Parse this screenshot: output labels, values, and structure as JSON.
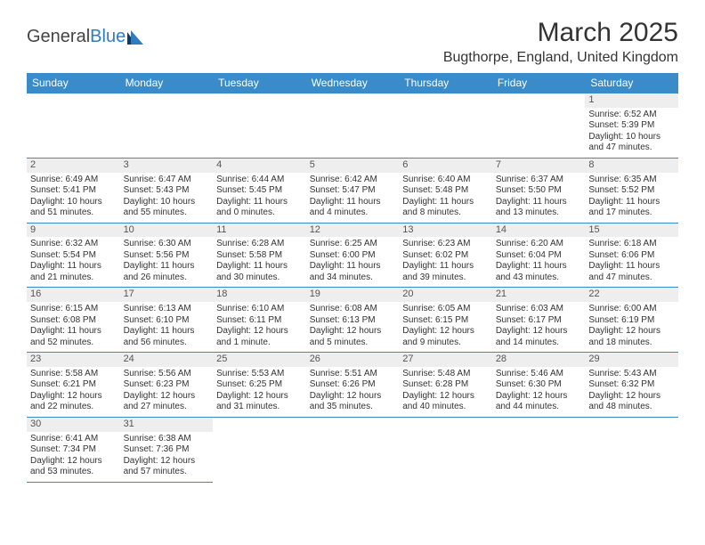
{
  "logo": {
    "text_a": "General",
    "text_b": "Blue"
  },
  "title": "March 2025",
  "location": "Bugthorpe, England, United Kingdom",
  "colors": {
    "header_bg": "#3a8bc9",
    "header_text": "#ffffff",
    "grid_line": "#3a8bc9",
    "daynum_bg": "#eeeeee",
    "text": "#333333"
  },
  "fonts": {
    "title_size": 30,
    "location_size": 16,
    "weekday_size": 12,
    "cell_size": 10
  },
  "weekdays": [
    "Sunday",
    "Monday",
    "Tuesday",
    "Wednesday",
    "Thursday",
    "Friday",
    "Saturday"
  ],
  "rows": [
    [
      null,
      null,
      null,
      null,
      null,
      null,
      {
        "n": "1",
        "sr": "Sunrise: 6:52 AM",
        "ss": "Sunset: 5:39 PM",
        "d1": "Daylight: 10 hours",
        "d2": "and 47 minutes."
      }
    ],
    [
      {
        "n": "2",
        "sr": "Sunrise: 6:49 AM",
        "ss": "Sunset: 5:41 PM",
        "d1": "Daylight: 10 hours",
        "d2": "and 51 minutes."
      },
      {
        "n": "3",
        "sr": "Sunrise: 6:47 AM",
        "ss": "Sunset: 5:43 PM",
        "d1": "Daylight: 10 hours",
        "d2": "and 55 minutes."
      },
      {
        "n": "4",
        "sr": "Sunrise: 6:44 AM",
        "ss": "Sunset: 5:45 PM",
        "d1": "Daylight: 11 hours",
        "d2": "and 0 minutes."
      },
      {
        "n": "5",
        "sr": "Sunrise: 6:42 AM",
        "ss": "Sunset: 5:47 PM",
        "d1": "Daylight: 11 hours",
        "d2": "and 4 minutes."
      },
      {
        "n": "6",
        "sr": "Sunrise: 6:40 AM",
        "ss": "Sunset: 5:48 PM",
        "d1": "Daylight: 11 hours",
        "d2": "and 8 minutes."
      },
      {
        "n": "7",
        "sr": "Sunrise: 6:37 AM",
        "ss": "Sunset: 5:50 PM",
        "d1": "Daylight: 11 hours",
        "d2": "and 13 minutes."
      },
      {
        "n": "8",
        "sr": "Sunrise: 6:35 AM",
        "ss": "Sunset: 5:52 PM",
        "d1": "Daylight: 11 hours",
        "d2": "and 17 minutes."
      }
    ],
    [
      {
        "n": "9",
        "sr": "Sunrise: 6:32 AM",
        "ss": "Sunset: 5:54 PM",
        "d1": "Daylight: 11 hours",
        "d2": "and 21 minutes."
      },
      {
        "n": "10",
        "sr": "Sunrise: 6:30 AM",
        "ss": "Sunset: 5:56 PM",
        "d1": "Daylight: 11 hours",
        "d2": "and 26 minutes."
      },
      {
        "n": "11",
        "sr": "Sunrise: 6:28 AM",
        "ss": "Sunset: 5:58 PM",
        "d1": "Daylight: 11 hours",
        "d2": "and 30 minutes."
      },
      {
        "n": "12",
        "sr": "Sunrise: 6:25 AM",
        "ss": "Sunset: 6:00 PM",
        "d1": "Daylight: 11 hours",
        "d2": "and 34 minutes."
      },
      {
        "n": "13",
        "sr": "Sunrise: 6:23 AM",
        "ss": "Sunset: 6:02 PM",
        "d1": "Daylight: 11 hours",
        "d2": "and 39 minutes."
      },
      {
        "n": "14",
        "sr": "Sunrise: 6:20 AM",
        "ss": "Sunset: 6:04 PM",
        "d1": "Daylight: 11 hours",
        "d2": "and 43 minutes."
      },
      {
        "n": "15",
        "sr": "Sunrise: 6:18 AM",
        "ss": "Sunset: 6:06 PM",
        "d1": "Daylight: 11 hours",
        "d2": "and 47 minutes."
      }
    ],
    [
      {
        "n": "16",
        "sr": "Sunrise: 6:15 AM",
        "ss": "Sunset: 6:08 PM",
        "d1": "Daylight: 11 hours",
        "d2": "and 52 minutes."
      },
      {
        "n": "17",
        "sr": "Sunrise: 6:13 AM",
        "ss": "Sunset: 6:10 PM",
        "d1": "Daylight: 11 hours",
        "d2": "and 56 minutes."
      },
      {
        "n": "18",
        "sr": "Sunrise: 6:10 AM",
        "ss": "Sunset: 6:11 PM",
        "d1": "Daylight: 12 hours",
        "d2": "and 1 minute."
      },
      {
        "n": "19",
        "sr": "Sunrise: 6:08 AM",
        "ss": "Sunset: 6:13 PM",
        "d1": "Daylight: 12 hours",
        "d2": "and 5 minutes."
      },
      {
        "n": "20",
        "sr": "Sunrise: 6:05 AM",
        "ss": "Sunset: 6:15 PM",
        "d1": "Daylight: 12 hours",
        "d2": "and 9 minutes."
      },
      {
        "n": "21",
        "sr": "Sunrise: 6:03 AM",
        "ss": "Sunset: 6:17 PM",
        "d1": "Daylight: 12 hours",
        "d2": "and 14 minutes."
      },
      {
        "n": "22",
        "sr": "Sunrise: 6:00 AM",
        "ss": "Sunset: 6:19 PM",
        "d1": "Daylight: 12 hours",
        "d2": "and 18 minutes."
      }
    ],
    [
      {
        "n": "23",
        "sr": "Sunrise: 5:58 AM",
        "ss": "Sunset: 6:21 PM",
        "d1": "Daylight: 12 hours",
        "d2": "and 22 minutes."
      },
      {
        "n": "24",
        "sr": "Sunrise: 5:56 AM",
        "ss": "Sunset: 6:23 PM",
        "d1": "Daylight: 12 hours",
        "d2": "and 27 minutes."
      },
      {
        "n": "25",
        "sr": "Sunrise: 5:53 AM",
        "ss": "Sunset: 6:25 PM",
        "d1": "Daylight: 12 hours",
        "d2": "and 31 minutes."
      },
      {
        "n": "26",
        "sr": "Sunrise: 5:51 AM",
        "ss": "Sunset: 6:26 PM",
        "d1": "Daylight: 12 hours",
        "d2": "and 35 minutes."
      },
      {
        "n": "27",
        "sr": "Sunrise: 5:48 AM",
        "ss": "Sunset: 6:28 PM",
        "d1": "Daylight: 12 hours",
        "d2": "and 40 minutes."
      },
      {
        "n": "28",
        "sr": "Sunrise: 5:46 AM",
        "ss": "Sunset: 6:30 PM",
        "d1": "Daylight: 12 hours",
        "d2": "and 44 minutes."
      },
      {
        "n": "29",
        "sr": "Sunrise: 5:43 AM",
        "ss": "Sunset: 6:32 PM",
        "d1": "Daylight: 12 hours",
        "d2": "and 48 minutes."
      }
    ],
    [
      {
        "n": "30",
        "sr": "Sunrise: 6:41 AM",
        "ss": "Sunset: 7:34 PM",
        "d1": "Daylight: 12 hours",
        "d2": "and 53 minutes."
      },
      {
        "n": "31",
        "sr": "Sunrise: 6:38 AM",
        "ss": "Sunset: 7:36 PM",
        "d1": "Daylight: 12 hours",
        "d2": "and 57 minutes."
      },
      null,
      null,
      null,
      null,
      null
    ]
  ]
}
